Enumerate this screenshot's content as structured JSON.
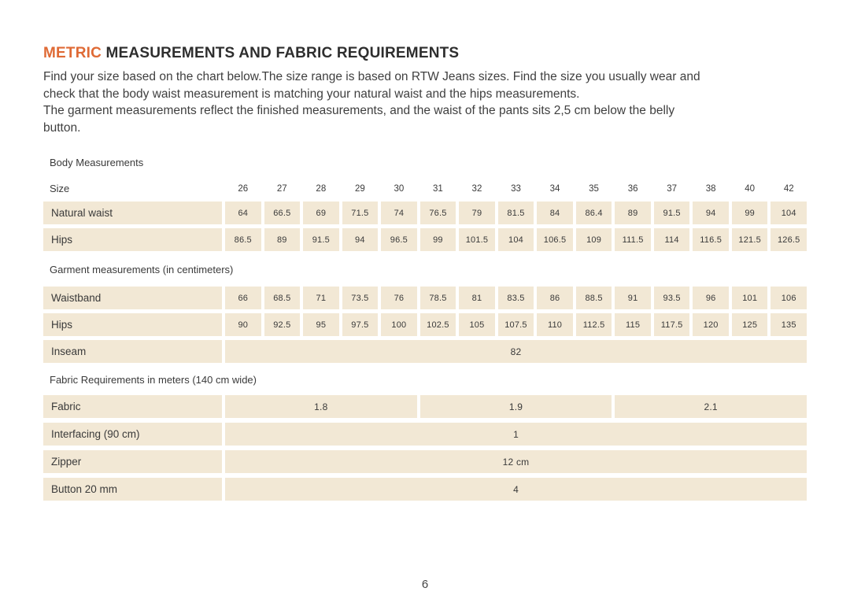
{
  "header": {
    "title_highlight": "METRIC",
    "title_rest": "MEASUREMENTS AND FABRIC REQUIREMENTS"
  },
  "intro": {
    "lines": [
      "Find your size based on the chart below.The size range is based on RTW Jeans sizes. Find the size you usually wear and",
      "check that the body waist measurement is matching your natural waist and the hips measurements.",
      "The garment measurements reflect the finished measurements, and the waist of the pants sits 2,5 cm below the belly",
      "button."
    ]
  },
  "table": {
    "body": {
      "header": "Body Measurements",
      "size_label": "Size",
      "sizes": [
        "26",
        "27",
        "28",
        "29",
        "30",
        "31",
        "32",
        "33",
        "34",
        "35",
        "36",
        "37",
        "38",
        "40",
        "42"
      ],
      "natural_waist_label": "Natural waist",
      "natural_waist": [
        "64",
        "66.5",
        "69",
        "71.5",
        "74",
        "76.5",
        "79",
        "81.5",
        "84",
        "86.4",
        "89",
        "91.5",
        "94",
        "99",
        "104"
      ],
      "hips_label": "Hips",
      "hips": [
        "86.5",
        "89",
        "91.5",
        "94",
        "96.5",
        "99",
        "101.5",
        "104",
        "106.5",
        "109",
        "111.5",
        "114",
        "116.5",
        "121.5",
        "126.5"
      ]
    },
    "garment": {
      "header": "Garment measurements (in centimeters)",
      "waistband_label": "Waistband",
      "waistband": [
        "66",
        "68.5",
        "71",
        "73.5",
        "76",
        "78.5",
        "81",
        "83.5",
        "86",
        "88.5",
        "91",
        "93.5",
        "96",
        "101",
        "106"
      ],
      "hips_label": "Hips",
      "hips": [
        "90",
        "92.5",
        "95",
        "97.5",
        "100",
        "102.5",
        "105",
        "107.5",
        "110",
        "112.5",
        "115",
        "117.5",
        "120",
        "125",
        "135"
      ],
      "inseam_label": "Inseam",
      "inseam": "82"
    },
    "fabric": {
      "header": "Fabric Requirements in meters (140 cm wide)",
      "fabric_label": "Fabric",
      "fabric_values": [
        "1.8",
        "1.9",
        "2.1"
      ],
      "interfacing_label": "Interfacing (90 cm)",
      "interfacing": "1",
      "zipper_label": "Zipper",
      "zipper": "12 cm",
      "button_label": "Button 20 mm",
      "button": "4"
    }
  },
  "footer": {
    "page_number": "6"
  },
  "colors": {
    "accent": "#df6a35",
    "cell_bg": "#f2e8d5",
    "text": "#3c3c3c"
  }
}
